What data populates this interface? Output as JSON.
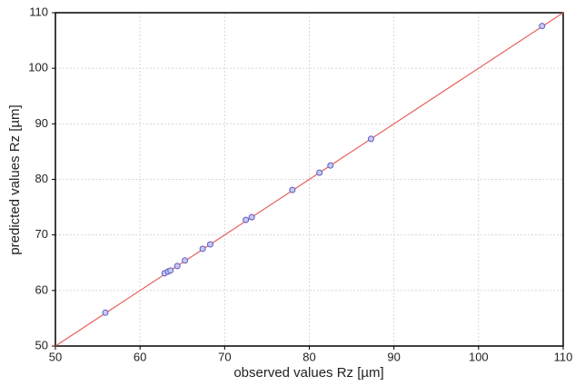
{
  "chart_data": {
    "type": "scatter",
    "x_label": "observed values Rz [µm]",
    "y_label": "predicted values Rz [µm]",
    "x": [
      55.9,
      62.9,
      63.3,
      63.6,
      64.4,
      65.3,
      67.4,
      68.3,
      72.5,
      73.2,
      78.0,
      81.2,
      82.5,
      87.3,
      107.5
    ],
    "values": [
      56.0,
      63.1,
      63.4,
      63.6,
      64.4,
      65.4,
      67.5,
      68.3,
      72.7,
      73.2,
      78.1,
      81.2,
      82.5,
      87.3,
      107.6
    ],
    "color": "#5b5bc8",
    "line_color": "#e8605a",
    "xlim": [
      50,
      110
    ],
    "ylim": [
      50,
      110
    ],
    "xticks": [
      50,
      60,
      70,
      80,
      90,
      100,
      110
    ],
    "yticks": [
      50,
      60,
      70,
      80,
      90,
      100,
      110
    ],
    "grid": true
  }
}
